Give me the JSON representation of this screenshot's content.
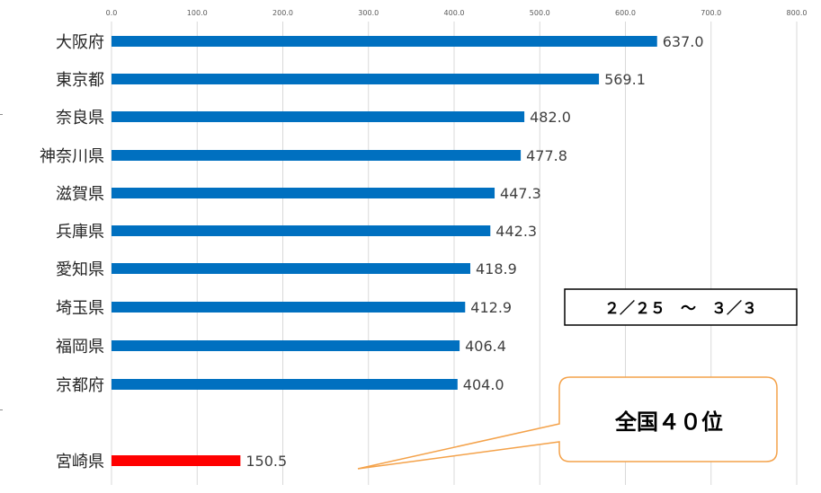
{
  "chart_data": {
    "type": "bar",
    "orientation": "horizontal",
    "xlim": [
      0,
      800
    ],
    "x_ticks": [
      "0.0",
      "100.0",
      "200.0",
      "300.0",
      "400.0",
      "500.0",
      "600.0",
      "700.0",
      "800.0"
    ],
    "grid": true,
    "categories": [
      "大阪府",
      "東京都",
      "奈良県",
      "神奈川県",
      "滋賀県",
      "兵庫県",
      "愛知県",
      "埼玉県",
      "福岡県",
      "京都府",
      "宮崎県"
    ],
    "values": [
      637.0,
      569.1,
      482.0,
      477.8,
      447.3,
      442.3,
      418.9,
      412.9,
      406.4,
      404.0,
      150.5
    ],
    "value_labels": [
      "637.0",
      "569.1",
      "482.0",
      "477.8",
      "447.3",
      "442.3",
      "418.9",
      "412.9",
      "406.4",
      "404.0",
      "150.5"
    ],
    "bar_colors": [
      "#0070c0",
      "#0070c0",
      "#0070c0",
      "#0070c0",
      "#0070c0",
      "#0070c0",
      "#0070c0",
      "#0070c0",
      "#0070c0",
      "#0070c0",
      "#ff0000"
    ],
    "annotations": {
      "period": "２／２５　～　３／３",
      "rank": "全国４０位"
    }
  },
  "colors": {
    "bar": "#0070c0",
    "highlight": "#ff0000",
    "callout_border": "#f4a24a",
    "grid": "#d9d9d9"
  }
}
